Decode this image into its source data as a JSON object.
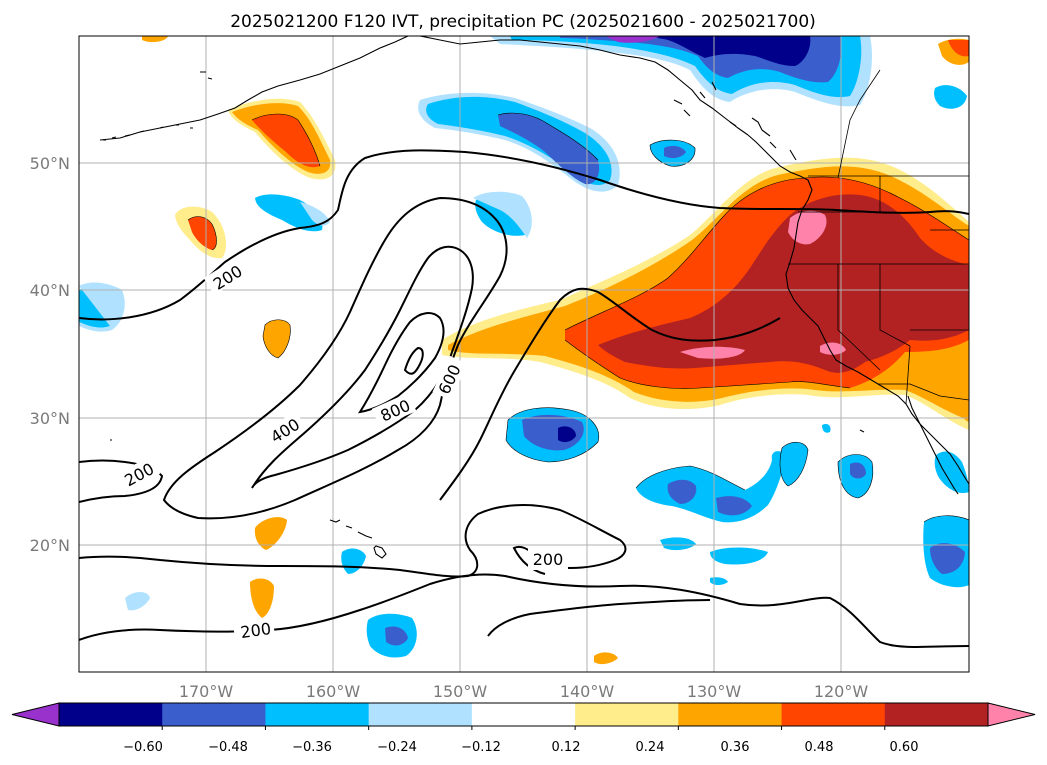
{
  "title": "2025021200 F120 IVT, precipitation PC (2025021600 - 2025021700)",
  "map": {
    "lon_range": [
      180,
      110
    ],
    "lat_range": [
      10,
      60
    ],
    "lon_ticks": [
      "170°W",
      "160°W",
      "150°W",
      "140°W",
      "130°W",
      "120°W"
    ],
    "lat_ticks": [
      "50°N",
      "40°N",
      "30°N",
      "20°N"
    ],
    "grid": true
  },
  "contours": {
    "variable": "IVT",
    "levels": [
      200,
      400,
      600,
      800
    ],
    "labels": [
      "200",
      "200",
      "200",
      "400",
      "600",
      "800",
      "200"
    ],
    "color": "#000000"
  },
  "colorbar": {
    "orientation": "horizontal",
    "extend": "both",
    "tick_labels": [
      "−0.60",
      "−0.48",
      "−0.36",
      "−0.24",
      "−0.12",
      "0.12",
      "0.24",
      "0.36",
      "0.48",
      "0.60"
    ],
    "colors": [
      "#9932cc",
      "#00008b",
      "#3a5fcd",
      "#00bfff",
      "#b0e2ff",
      "#ffffff",
      "#ffec8b",
      "#ffa500",
      "#ff4500",
      "#b22222",
      "#ff82ab"
    ]
  }
}
